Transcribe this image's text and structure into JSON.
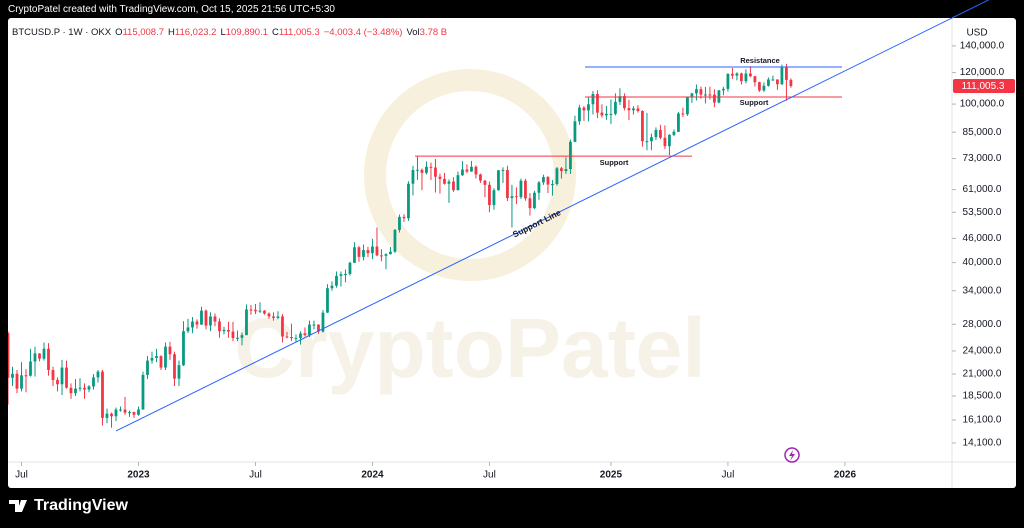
{
  "credit": "CryptoPatel created with TradingView.com, Oct 15, 2025 21:56 UTC+5:30",
  "brand": "TradingView",
  "chart_data": {
    "type": "candlestick",
    "title": "BTCUSD.P · 1W · OKX",
    "ohlc_labels": [
      {
        "key": "O",
        "value": "115,008.7"
      },
      {
        "key": "H",
        "value": "116,023.2"
      },
      {
        "key": "L",
        "value": "109,890.1"
      },
      {
        "key": "C",
        "value": "111,005.3"
      },
      {
        "key": "",
        "value": "−4,003.4 (−3.48%)"
      },
      {
        "key": "Vol",
        "value": "3.78 B"
      }
    ],
    "currency": "USD",
    "watermark": "CryptoPatel",
    "up_color": "#089981",
    "down_color": "#f23645",
    "log_scale": true,
    "ylim": [
      12630,
      164500
    ],
    "yticks": [
      {
        "value": 140000,
        "label": "140,000.0"
      },
      {
        "value": 120000,
        "label": "120,000.0"
      },
      {
        "value": 100000,
        "label": "100,000.0"
      },
      {
        "value": 85000,
        "label": "85,000.0"
      },
      {
        "value": 73000,
        "label": "73,000.0"
      },
      {
        "value": 61000,
        "label": "61,000.0"
      },
      {
        "value": 53500,
        "label": "53,500.0"
      },
      {
        "value": 46000,
        "label": "46,000.0"
      },
      {
        "value": 40000,
        "label": "40,000.0"
      },
      {
        "value": 34000,
        "label": "34,000.0"
      },
      {
        "value": 28000,
        "label": "28,000.0"
      },
      {
        "value": 24000,
        "label": "24,000.0"
      },
      {
        "value": 21000,
        "label": "21,000.0"
      },
      {
        "value": 18500,
        "label": "18,500.0"
      },
      {
        "value": 16100,
        "label": "16,100.0"
      },
      {
        "value": 14100,
        "label": "14,100.0"
      }
    ],
    "xlim": [
      0,
      209.8
    ],
    "xticks": [
      {
        "value": 3,
        "label": "Jul"
      },
      {
        "value": 29,
        "label": "2023"
      },
      {
        "value": 55,
        "label": "Jul"
      },
      {
        "value": 81,
        "label": "2024"
      },
      {
        "value": 107,
        "label": "Jul"
      },
      {
        "value": 134,
        "label": "2025"
      },
      {
        "value": 160,
        "label": "Jul"
      },
      {
        "value": 186,
        "label": "2026"
      }
    ],
    "last_price": {
      "value": 111005.3,
      "label": "111,005.3"
    },
    "levels": [
      {
        "label": "Resistance",
        "value": 123900,
        "color": "#2962ff"
      },
      {
        "label": "Support",
        "value": 104200,
        "color": "#f23645"
      },
      {
        "label": "Support",
        "value": 74000,
        "color": "#f23645"
      }
    ],
    "trendline": {
      "label": "Support Line",
      "start": 15110,
      "end": 164500,
      "color": "#2962ff"
    },
    "candles": [
      [
        26600,
        26900,
        17600,
        20550
      ],
      [
        20550,
        21900,
        19600,
        21030
      ],
      [
        21030,
        21500,
        18800,
        19300
      ],
      [
        19300,
        22500,
        19000,
        20850
      ],
      [
        20850,
        21600,
        18900,
        20800
      ],
      [
        20800,
        24300,
        20700,
        22580
      ],
      [
        22580,
        24600,
        20700,
        23650
      ],
      [
        23650,
        23700,
        22600,
        22950
      ],
      [
        22950,
        25200,
        22700,
        24300
      ],
      [
        24300,
        25100,
        20800,
        21500
      ],
      [
        21500,
        21900,
        19600,
        20300
      ],
      [
        20300,
        20600,
        19000,
        19800
      ],
      [
        19800,
        22800,
        18600,
        21800
      ],
      [
        21800,
        22700,
        19300,
        19400
      ],
      [
        19400,
        19900,
        18200,
        18800
      ],
      [
        18800,
        20400,
        18500,
        19300
      ],
      [
        19300,
        20500,
        19000,
        19400
      ],
      [
        19400,
        19900,
        18200,
        19200
      ],
      [
        19200,
        19700,
        18900,
        19550
      ],
      [
        19550,
        21000,
        19200,
        20600
      ],
      [
        20600,
        21500,
        20000,
        21300
      ],
      [
        21300,
        21500,
        15600,
        16300
      ],
      [
        16300,
        17200,
        15800,
        16700
      ],
      [
        16700,
        16800,
        15400,
        16450
      ],
      [
        16450,
        17300,
        16000,
        17100
      ],
      [
        17100,
        17400,
        16900,
        17100
      ],
      [
        17100,
        18400,
        16600,
        16800
      ],
      [
        16800,
        17000,
        16400,
        16850
      ],
      [
        16850,
        16900,
        16300,
        16600
      ],
      [
        16600,
        17400,
        16500,
        17100
      ],
      [
        17100,
        21300,
        17100,
        20900
      ],
      [
        20900,
        23300,
        20400,
        22700
      ],
      [
        22700,
        23900,
        22300,
        23050
      ],
      [
        23050,
        24300,
        22500,
        23300
      ],
      [
        23300,
        23400,
        21500,
        21800
      ],
      [
        21800,
        25200,
        21500,
        24600
      ],
      [
        24600,
        25300,
        22800,
        23550
      ],
      [
        23550,
        23900,
        19600,
        20450
      ],
      [
        20450,
        22700,
        19600,
        22100
      ],
      [
        22100,
        28500,
        22000,
        26900
      ],
      [
        26900,
        28900,
        26600,
        27500
      ],
      [
        27500,
        29200,
        26600,
        28450
      ],
      [
        28450,
        28800,
        27300,
        27950
      ],
      [
        27950,
        31000,
        27900,
        30300
      ],
      [
        30300,
        30500,
        27200,
        27800
      ],
      [
        27800,
        30000,
        26900,
        29300
      ],
      [
        29300,
        29800,
        27700,
        28450
      ],
      [
        28450,
        29000,
        25900,
        26900
      ],
      [
        26900,
        27600,
        26400,
        27100
      ],
      [
        27100,
        28400,
        25900,
        26850
      ],
      [
        26850,
        28400,
        25400,
        25850
      ],
      [
        25850,
        27000,
        25400,
        25900
      ],
      [
        25900,
        26700,
        24800,
        26300
      ],
      [
        26300,
        31400,
        26300,
        30500
      ],
      [
        30500,
        31300,
        29600,
        30450
      ],
      [
        30450,
        31500,
        29700,
        30200
      ],
      [
        30200,
        31800,
        29900,
        30300
      ],
      [
        30300,
        30400,
        29600,
        29800
      ],
      [
        29800,
        30000,
        28900,
        29300
      ],
      [
        29300,
        30000,
        28600,
        29050
      ],
      [
        29050,
        30200,
        28800,
        29300
      ],
      [
        29300,
        29700,
        25200,
        26100
      ],
      [
        26100,
        26800,
        25800,
        26000
      ],
      [
        26000,
        28100,
        25400,
        25850
      ],
      [
        25850,
        26400,
        25200,
        25850
      ],
      [
        25850,
        26900,
        24900,
        26550
      ],
      [
        26550,
        27500,
        26100,
        26300
      ],
      [
        26300,
        28600,
        26000,
        27950
      ],
      [
        27950,
        28600,
        27200,
        27950
      ],
      [
        27950,
        28000,
        26500,
        26850
      ],
      [
        26850,
        30400,
        26700,
        29950
      ],
      [
        29950,
        35300,
        29900,
        34500
      ],
      [
        34500,
        35900,
        34000,
        35000
      ],
      [
        35000,
        38000,
        34600,
        37050
      ],
      [
        37050,
        38000,
        34800,
        37400
      ],
      [
        37400,
        38400,
        35700,
        37450
      ],
      [
        37450,
        40200,
        37100,
        39950
      ],
      [
        39950,
        45000,
        39900,
        43700
      ],
      [
        43700,
        44000,
        40200,
        41350
      ],
      [
        41350,
        44400,
        40500,
        43000
      ],
      [
        43000,
        43800,
        41300,
        42250
      ],
      [
        42250,
        45900,
        40800,
        43900
      ],
      [
        43900,
        49000,
        41500,
        41700
      ],
      [
        41700,
        43200,
        40300,
        41600
      ],
      [
        41600,
        42200,
        38500,
        42000
      ],
      [
        42000,
        43800,
        41900,
        42600
      ],
      [
        42600,
        48600,
        42300,
        48300
      ],
      [
        48300,
        52800,
        47600,
        52100
      ],
      [
        52100,
        52900,
        50600,
        51700
      ],
      [
        51700,
        64000,
        50900,
        63100
      ],
      [
        63100,
        70000,
        59000,
        68300
      ],
      [
        68300,
        73800,
        64500,
        68400
      ],
      [
        68400,
        68900,
        60800,
        67200
      ],
      [
        67200,
        71800,
        66600,
        69600
      ],
      [
        69600,
        71300,
        64500,
        69300
      ],
      [
        69300,
        72800,
        60000,
        65700
      ],
      [
        65700,
        66900,
        59600,
        64900
      ],
      [
        64900,
        67200,
        62800,
        63100
      ],
      [
        63100,
        64700,
        56500,
        63900
      ],
      [
        63900,
        65500,
        60200,
        60800
      ],
      [
        60800,
        67700,
        60700,
        66300
      ],
      [
        66300,
        71900,
        66000,
        68500
      ],
      [
        68500,
        70600,
        67100,
        67700
      ],
      [
        67700,
        72000,
        67600,
        69600
      ],
      [
        69600,
        70200,
        65000,
        66600
      ],
      [
        66600,
        66900,
        63400,
        64250
      ],
      [
        64250,
        64500,
        58400,
        62700
      ],
      [
        62700,
        63900,
        53500,
        55800
      ],
      [
        55800,
        61500,
        54300,
        60800
      ],
      [
        60800,
        68300,
        60600,
        68200
      ],
      [
        68200,
        69400,
        63400,
        68300
      ],
      [
        68300,
        70000,
        57100,
        58100
      ],
      [
        58100,
        62700,
        49000,
        58700
      ],
      [
        58700,
        61800,
        56100,
        58400
      ],
      [
        58400,
        65000,
        57800,
        64200
      ],
      [
        64200,
        64900,
        57200,
        58000
      ],
      [
        58000,
        59800,
        52500,
        54800
      ],
      [
        54800,
        60600,
        54500,
        59900
      ],
      [
        59900,
        64100,
        57500,
        63600
      ],
      [
        63600,
        66500,
        62700,
        65600
      ],
      [
        65600,
        66000,
        59800,
        62800
      ],
      [
        62800,
        64500,
        58900,
        63000
      ],
      [
        63000,
        69500,
        62400,
        69000
      ],
      [
        69000,
        69500,
        65000,
        67900
      ],
      [
        67900,
        73600,
        66800,
        68700
      ],
      [
        68700,
        81500,
        66800,
        80400
      ],
      [
        80400,
        93500,
        80200,
        90500
      ],
      [
        90500,
        99600,
        88700,
        98000
      ],
      [
        98000,
        98800,
        90800,
        96400
      ],
      [
        96400,
        104000,
        90500,
        99900
      ],
      [
        99900,
        107800,
        94200,
        106000
      ],
      [
        106000,
        108300,
        92200,
        95200
      ],
      [
        95200,
        99900,
        92500,
        93700
      ],
      [
        93700,
        98900,
        91300,
        94500
      ],
      [
        94500,
        102700,
        89200,
        94500
      ],
      [
        94500,
        106400,
        93700,
        101300
      ],
      [
        101300,
        109600,
        99500,
        104700
      ],
      [
        104700,
        106400,
        96400,
        97700
      ],
      [
        97700,
        102500,
        91200,
        96500
      ],
      [
        96500,
        98800,
        94100,
        97500
      ],
      [
        97500,
        99400,
        95200,
        96100
      ],
      [
        96100,
        96500,
        78200,
        80700
      ],
      [
        80700,
        95000,
        76600,
        80700
      ],
      [
        80700,
        84300,
        76600,
        82600
      ],
      [
        82600,
        87400,
        81200,
        86100
      ],
      [
        86100,
        88700,
        81600,
        82300
      ],
      [
        82300,
        88400,
        77100,
        78400
      ],
      [
        78400,
        84000,
        74400,
        83700
      ],
      [
        83700,
        86400,
        83100,
        85200
      ],
      [
        85200,
        95600,
        85100,
        94700
      ],
      [
        94700,
        97900,
        92800,
        94300
      ],
      [
        94300,
        104300,
        93400,
        104100
      ],
      [
        104100,
        106700,
        100700,
        106400
      ],
      [
        106400,
        112000,
        102100,
        109000
      ],
      [
        109000,
        110700,
        103100,
        105700
      ],
      [
        105700,
        110400,
        100400,
        105700
      ],
      [
        105700,
        110600,
        102700,
        105600
      ],
      [
        105600,
        108900,
        98200,
        100900
      ],
      [
        100900,
        108500,
        100400,
        108300
      ],
      [
        108300,
        110500,
        105200,
        109200
      ],
      [
        109200,
        119500,
        107500,
        119100
      ],
      [
        119100,
        123200,
        115700,
        117900
      ],
      [
        117900,
        120200,
        114700,
        119400
      ],
      [
        119400,
        119900,
        112000,
        114200
      ],
      [
        114200,
        122300,
        112700,
        119300
      ],
      [
        119300,
        124500,
        116800,
        117500
      ],
      [
        117500,
        117600,
        110700,
        113500
      ],
      [
        113500,
        113800,
        107300,
        108200
      ],
      [
        108200,
        113400,
        107300,
        111200
      ],
      [
        111200,
        116700,
        110600,
        115300
      ],
      [
        115300,
        117900,
        114400,
        115300
      ],
      [
        115300,
        115400,
        108600,
        112200
      ],
      [
        112200,
        125700,
        111600,
        123500
      ],
      [
        123500,
        126200,
        102000,
        115008.7
      ],
      [
        115008.7,
        116023.2,
        109890.1,
        111005.3
      ]
    ]
  }
}
